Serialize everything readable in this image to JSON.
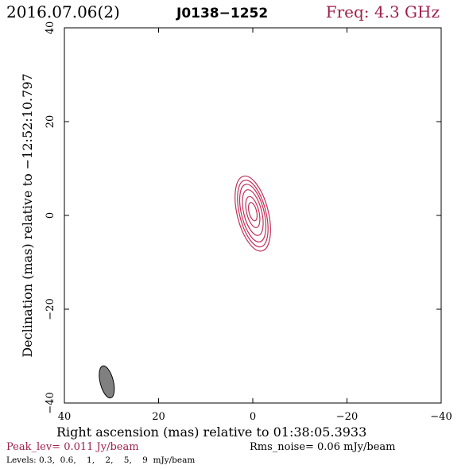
{
  "header": {
    "date": "2016.07.06(2)",
    "source": "J0138−1252",
    "freq": "Freq: 4.3 GHz"
  },
  "footer": {
    "peak": "Peak_lev=  0.011 Jy/beam",
    "rms": "Rms_noise= 0.06 mJy/beam",
    "levels": "Levels: 0.3,  0.6,    1,    2,    5,    9  mJy/beam"
  },
  "colors": {
    "accent": "#a0204a",
    "contour": "#c0305a",
    "beam_fill": "#808080",
    "axis": "#000000"
  },
  "chart_data": {
    "type": "contour",
    "xlabel": "Right ascension (mas) relative to 01:38:05.3933",
    "ylabel": "Declination (mas) relative to −12:52:10.797",
    "xlim": [
      40,
      -40
    ],
    "ylim": [
      -40,
      40
    ],
    "x_ticks": [
      40,
      20,
      0,
      -20,
      -40
    ],
    "y_ticks": [
      -40,
      -20,
      0,
      20,
      40
    ],
    "x_tick_labels": [
      "40",
      "20",
      "0",
      "−20",
      "−40"
    ],
    "y_tick_labels": [
      "−40",
      "−20",
      "0",
      "20",
      "40"
    ],
    "contours": [
      {
        "level": 0.3,
        "cx": 0.0,
        "cy": 0.4,
        "a": 3.3,
        "b": 8.2,
        "pa": 14
      },
      {
        "level": 0.6,
        "cx": 0.0,
        "cy": 0.4,
        "a": 2.8,
        "b": 7.3,
        "pa": 14
      },
      {
        "level": 1,
        "cx": 0.0,
        "cy": 0.5,
        "a": 2.4,
        "b": 6.3,
        "pa": 14
      },
      {
        "level": 2,
        "cx": 0.0,
        "cy": 0.6,
        "a": 1.9,
        "b": 5.0,
        "pa": 14
      },
      {
        "level": 5,
        "cx": 0.0,
        "cy": 0.7,
        "a": 1.3,
        "b": 3.4,
        "pa": 14
      },
      {
        "level": 9,
        "cx": 0.0,
        "cy": 0.8,
        "a": 0.8,
        "b": 2.0,
        "pa": 14
      }
    ],
    "beam": {
      "cx": 31.0,
      "cy": -35.5,
      "a": 1.4,
      "b": 3.5,
      "pa": 14
    },
    "grid": false
  }
}
